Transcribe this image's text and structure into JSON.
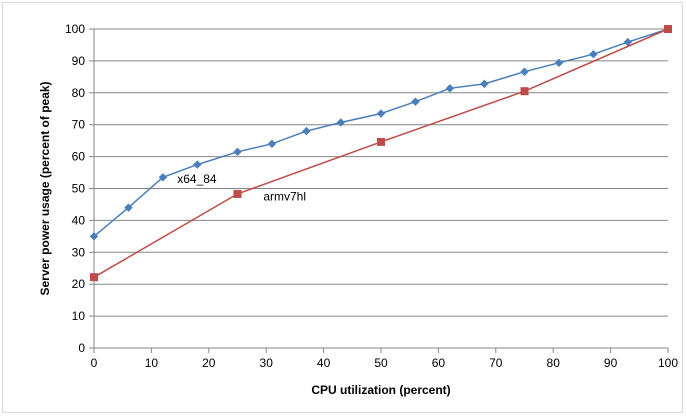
{
  "chart_data": {
    "type": "line",
    "title": "",
    "xlabel": "CPU utilization (percent)",
    "ylabel": "Server power usage (percent of peak)",
    "xlim": [
      0,
      100
    ],
    "ylim": [
      0,
      100
    ],
    "xticks": [
      0,
      10,
      20,
      30,
      40,
      50,
      60,
      70,
      80,
      90,
      100
    ],
    "yticks": [
      0,
      10,
      20,
      30,
      40,
      50,
      60,
      70,
      80,
      90,
      100
    ],
    "grid": "horizontal",
    "legend": "none",
    "series": [
      {
        "name": "x64_84",
        "color": "#4a7ebb",
        "marker": "diamond",
        "x": [
          0,
          6,
          12,
          18,
          25,
          31,
          37,
          43,
          50,
          56,
          62,
          68,
          75,
          81,
          87,
          93,
          100
        ],
        "y": [
          35,
          44,
          53.5,
          57.5,
          61.5,
          64,
          68,
          70.7,
          73.5,
          77.2,
          81.4,
          82.8,
          86.6,
          89.4,
          92.1,
          95.9,
          100
        ]
      },
      {
        "name": "armv7hl",
        "color": "#be4b48",
        "marker": "square",
        "x": [
          0,
          25,
          50,
          75,
          100
        ],
        "y": [
          22.2,
          48.3,
          64.6,
          80.5,
          100
        ]
      }
    ],
    "annotations": [
      {
        "text": "x64_84",
        "x": 14.5,
        "y": 51.7
      },
      {
        "text": "armv7hl",
        "x": 29.5,
        "y": 46.3
      }
    ]
  }
}
